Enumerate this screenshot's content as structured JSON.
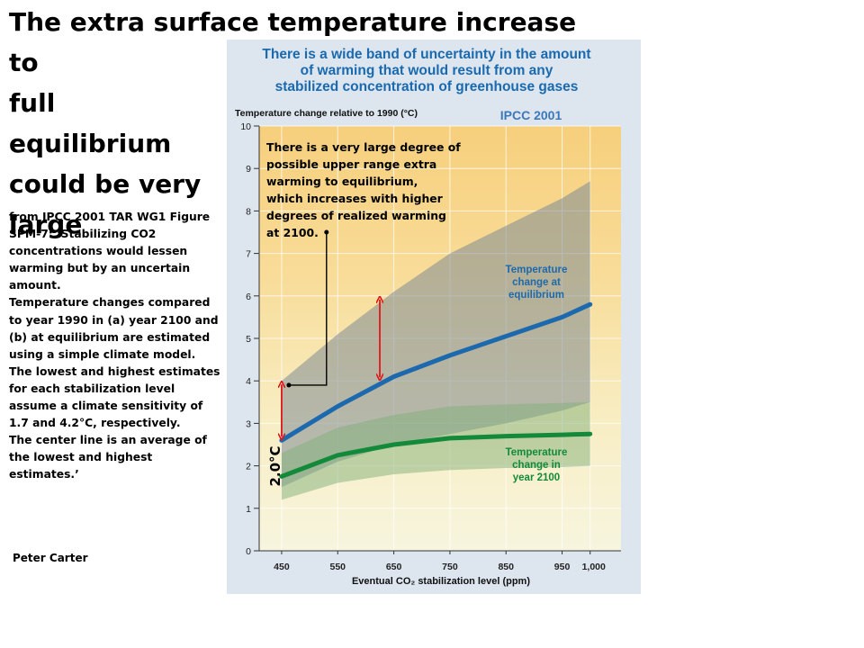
{
  "slide": {
    "title_lines": [
      "The extra surface temperature increase to",
      "full equilibrium",
      "could be very",
      "large"
    ],
    "description": [
      "from IPCC 2001 TAR WG1 Figure SPM-7: ‘Stabilizing CO2 concentrations would lessen warming but by an uncertain amount.",
      "Temperature changes compared to year 1990 in (a) year 2100 and (b) at equilibrium are estimated using a simple climate model.",
      "The lowest and highest estimates for each stabilization level assume a climate sensitivity of 1.7 and 4.2°C, respectively.",
      "The center line is an average of the lowest and highest estimates.’"
    ],
    "author": "Peter Carter"
  },
  "figure": {
    "headline": [
      "There is a wide band of uncertainty in the amount",
      "of warming that would result from any",
      "stabilized concentration of greenhouse gases"
    ],
    "source_label": "IPCC 2001",
    "annotation": [
      "There is a very large degree of",
      "possible upper range extra",
      "warming to equilibrium,",
      "which increases with higher",
      "degrees of realized warming",
      "at 2100."
    ],
    "gap_label": "2.0°C",
    "label_equilibrium": [
      "Temperature",
      "change at",
      "equilibrium"
    ],
    "label_2100": [
      "Temperature",
      "change in",
      "year 2100"
    ],
    "colors": {
      "panel_bg": "#dde5ef",
      "equilibrium_line": "#1d69ad",
      "line_2100": "#138a3a",
      "arrow": "#e0161b",
      "title_text": "#1a6ab0"
    }
  },
  "chart_data": {
    "type": "area",
    "ylabel": "Temperature change relative to 1990 (°C)",
    "xlabel": "Eventual CO₂ stabilization level (ppm)",
    "x_ticks": [
      450,
      550,
      650,
      750,
      850,
      950,
      1000
    ],
    "x_tick_labels": [
      "450",
      "550",
      "650",
      "750",
      "850",
      "950",
      "1,000"
    ],
    "y_ticks": [
      0,
      1,
      2,
      3,
      4,
      5,
      6,
      7,
      8,
      9,
      10
    ],
    "xlim": [
      410,
      1055
    ],
    "ylim": [
      0,
      10
    ],
    "grid": true,
    "x": [
      450,
      550,
      650,
      750,
      850,
      950,
      1000
    ],
    "series": [
      {
        "name": "Temperature change at equilibrium",
        "role": "center",
        "values": [
          2.6,
          3.4,
          4.1,
          4.6,
          5.05,
          5.5,
          5.8
        ]
      },
      {
        "role": "upper",
        "values": [
          4.0,
          5.1,
          6.1,
          7.0,
          7.65,
          8.3,
          8.7
        ]
      },
      {
        "role": "lower",
        "values": [
          1.5,
          2.1,
          2.5,
          2.75,
          3.0,
          3.3,
          3.5
        ]
      },
      {
        "name": "Temperature change in year 2100",
        "role": "center",
        "values": [
          1.75,
          2.25,
          2.5,
          2.65,
          2.7,
          2.73,
          2.75
        ]
      },
      {
        "role": "upper",
        "values": [
          2.3,
          2.9,
          3.2,
          3.4,
          3.45,
          3.48,
          3.5
        ]
      },
      {
        "role": "lower",
        "values": [
          1.2,
          1.6,
          1.8,
          1.9,
          1.95,
          1.97,
          2.0
        ]
      }
    ],
    "arrows": [
      {
        "x": 450,
        "y_from": 2.6,
        "y_to": 4.0
      },
      {
        "x": 625,
        "y_from": 4.0,
        "y_to": 6.0
      }
    ]
  }
}
